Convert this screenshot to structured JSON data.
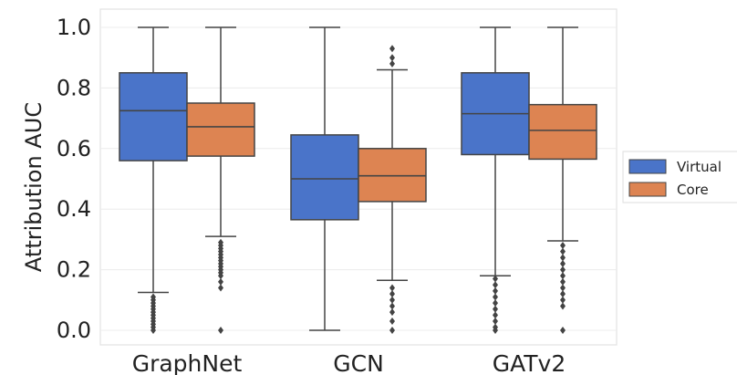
{
  "chart_data": {
    "type": "box",
    "title": "",
    "xlabel": "",
    "ylabel": "Attribution AUC",
    "ylim": [
      0.0,
      1.03
    ],
    "yticks": [
      0.0,
      0.2,
      0.4,
      0.6,
      0.8,
      1.0
    ],
    "ytick_labels": [
      "0.0",
      "0.2",
      "0.4",
      "0.6",
      "0.8",
      "1.0"
    ],
    "grid": true,
    "legend_position": "right",
    "categories": [
      "GraphNet",
      "GCN",
      "GATv2"
    ],
    "series": [
      {
        "name": "Virtual",
        "color": "#4a74c9",
        "boxes": [
          {
            "whisker_low": 0.125,
            "q1": 0.56,
            "median": 0.725,
            "q3": 0.85,
            "whisker_high": 1.0,
            "outliers": [
              0.0,
              0.01,
              0.02,
              0.03,
              0.04,
              0.05,
              0.06,
              0.07,
              0.08,
              0.09,
              0.1,
              0.11
            ]
          },
          {
            "whisker_low": 0.0,
            "q1": 0.365,
            "median": 0.5,
            "q3": 0.645,
            "whisker_high": 1.0,
            "outliers": []
          },
          {
            "whisker_low": 0.18,
            "q1": 0.58,
            "median": 0.715,
            "q3": 0.85,
            "whisker_high": 1.0,
            "outliers": [
              0.0,
              0.01,
              0.03,
              0.05,
              0.07,
              0.09,
              0.11,
              0.13,
              0.15,
              0.17
            ]
          }
        ]
      },
      {
        "name": "Core",
        "color": "#dd8452",
        "boxes": [
          {
            "whisker_low": 0.31,
            "q1": 0.575,
            "median": 0.672,
            "q3": 0.75,
            "whisker_high": 1.0,
            "outliers": [
              0.0,
              0.14,
              0.16,
              0.18,
              0.19,
              0.2,
              0.21,
              0.22,
              0.23,
              0.24,
              0.25,
              0.26,
              0.27,
              0.28,
              0.29
            ]
          },
          {
            "whisker_low": 0.165,
            "q1": 0.425,
            "median": 0.51,
            "q3": 0.6,
            "whisker_high": 0.86,
            "outliers": [
              0.0,
              0.03,
              0.06,
              0.08,
              0.1,
              0.12,
              0.14,
              0.88,
              0.9,
              0.93
            ]
          },
          {
            "whisker_low": 0.295,
            "q1": 0.565,
            "median": 0.66,
            "q3": 0.745,
            "whisker_high": 1.0,
            "outliers": [
              0.0,
              0.08,
              0.1,
              0.12,
              0.14,
              0.16,
              0.18,
              0.2,
              0.22,
              0.24,
              0.26,
              0.28
            ]
          }
        ]
      }
    ]
  }
}
